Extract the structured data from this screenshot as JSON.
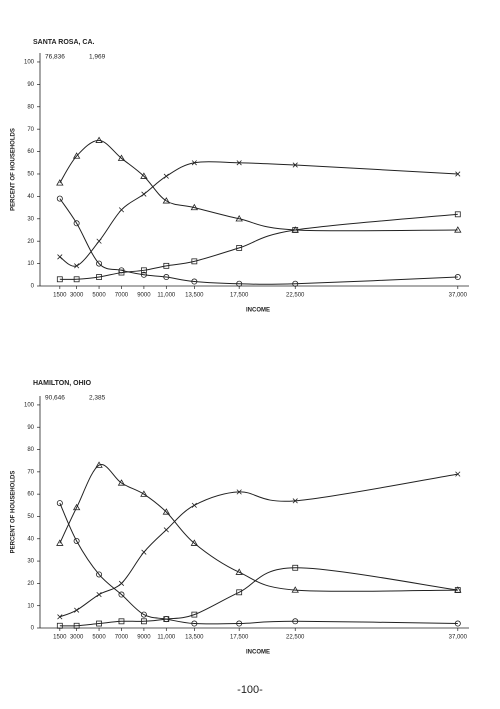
{
  "chart_data": [
    {
      "type": "line",
      "title": "SANTA ROSA, CA.",
      "subtitle": [
        "76,836",
        "1,969"
      ],
      "ylabel": "PERCENT OF HOUSEHOLDS",
      "xlabel": "INCOME",
      "x": [
        1500,
        3000,
        5000,
        7000,
        9000,
        11000,
        13500,
        17500,
        22500,
        37000
      ],
      "xlim": [
        0,
        38000
      ],
      "xticks": [
        1500,
        3000,
        5000,
        7000,
        9000,
        {
          "value": 11000,
          "label": "11,000"
        },
        {
          "value": 13500,
          "label": "13,500"
        },
        {
          "value": 17500,
          "label": "17,500"
        },
        {
          "value": 22500,
          "label": "22,500"
        },
        {
          "value": 37000,
          "label": "37,000"
        }
      ],
      "ylim": [
        0,
        104
      ],
      "yticks": [
        0,
        10,
        20,
        30,
        40,
        50,
        60,
        70,
        80,
        90,
        100
      ],
      "series": [
        {
          "marker": "triangle",
          "color": "#222",
          "values": [
            46,
            58,
            65,
            57,
            49,
            38,
            35,
            30,
            25,
            25
          ]
        },
        {
          "marker": "x",
          "color": "#222",
          "values": [
            13,
            9,
            20,
            34,
            41,
            49,
            55,
            55,
            54,
            50
          ]
        },
        {
          "marker": "square",
          "color": "#222",
          "values": [
            3,
            3,
            4,
            6,
            7,
            9,
            11,
            17,
            25,
            32
          ]
        },
        {
          "marker": "circle",
          "color": "#222",
          "values": [
            39,
            28,
            10,
            7,
            5,
            4,
            2,
            1,
            1,
            4
          ]
        }
      ]
    },
    {
      "type": "line",
      "title": "HAMILTON, OHIO",
      "subtitle": [
        "90,646",
        "2,385"
      ],
      "ylabel": "PERCENT OF HOUSEHOLDS",
      "xlabel": "INCOME",
      "x": [
        1500,
        3000,
        5000,
        7000,
        9000,
        11000,
        13500,
        17500,
        22500,
        37000
      ],
      "xlim": [
        0,
        38000
      ],
      "xticks": [
        1500,
        3000,
        5000,
        7000,
        9000,
        {
          "value": 11000,
          "label": "11,000"
        },
        {
          "value": 13500,
          "label": "13,500"
        },
        {
          "value": 17500,
          "label": "17,500"
        },
        {
          "value": 22500,
          "label": "22,500"
        },
        {
          "value": 37000,
          "label": "37,000"
        }
      ],
      "ylim": [
        0,
        104
      ],
      "yticks": [
        0,
        10,
        20,
        30,
        40,
        50,
        60,
        70,
        80,
        90,
        100
      ],
      "series": [
        {
          "marker": "triangle",
          "color": "#222",
          "values": [
            38,
            54,
            73,
            65,
            60,
            52,
            38,
            25,
            17,
            17
          ]
        },
        {
          "marker": "x",
          "color": "#222",
          "values": [
            5,
            8,
            15,
            20,
            34,
            44,
            55,
            61,
            57,
            69
          ]
        },
        {
          "marker": "square",
          "color": "#222",
          "values": [
            1,
            1,
            2,
            3,
            3,
            4,
            6,
            16,
            27,
            17
          ]
        },
        {
          "marker": "circle",
          "color": "#222",
          "values": [
            56,
            39,
            24,
            15,
            6,
            4,
            2,
            2,
            3,
            2
          ]
        }
      ]
    }
  ],
  "page_number": "-100-"
}
